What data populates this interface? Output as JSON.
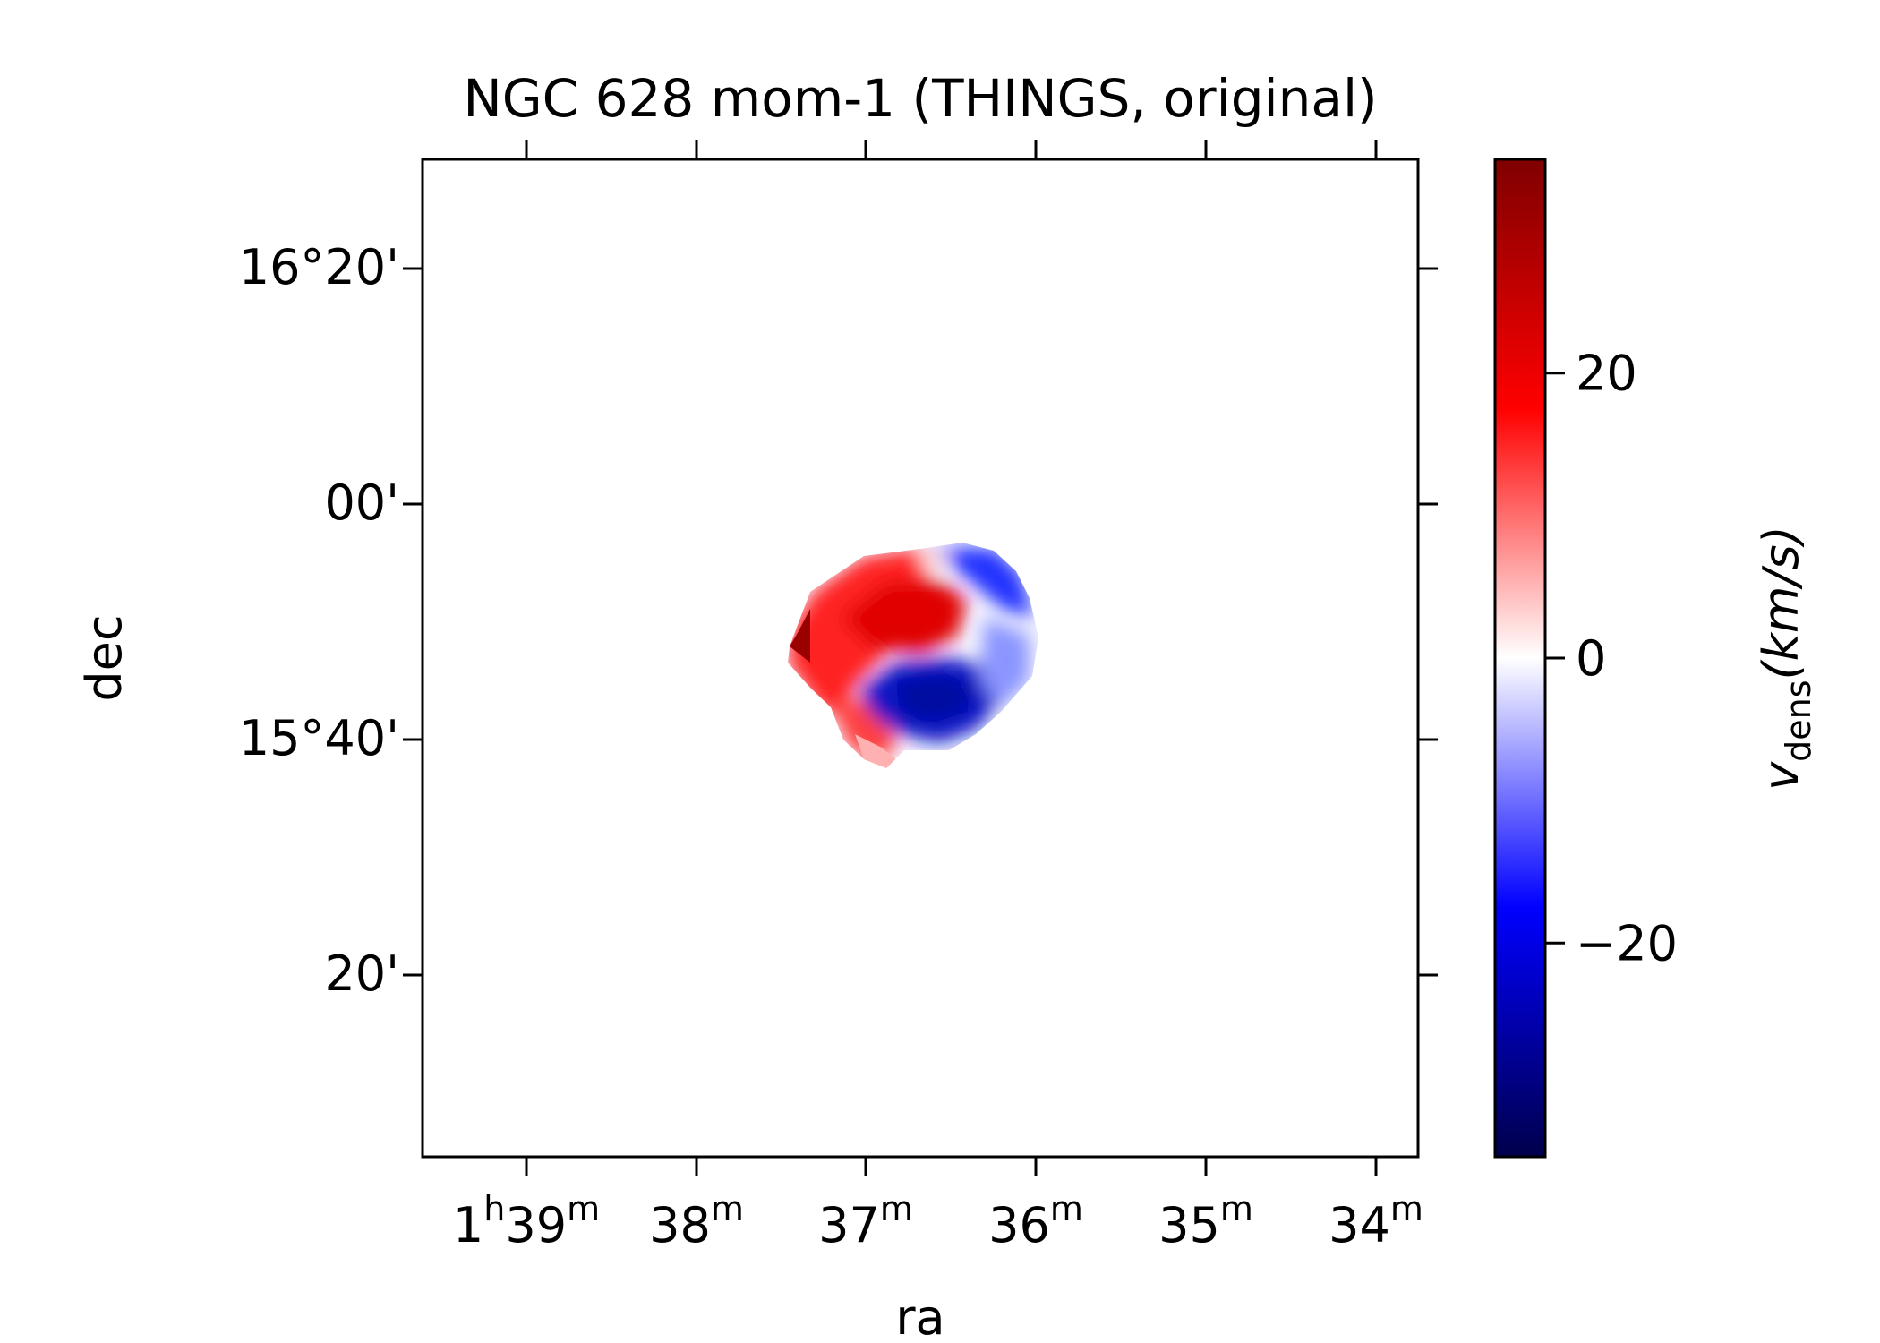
{
  "chart_data": {
    "type": "heatmap",
    "title": "NGC 628 mom-1 (THINGS, original)",
    "xlabel": "ra",
    "ylabel": "dec",
    "x_ticks": [
      {
        "main": "1",
        "sup1": "h",
        "mid": "39",
        "sup2": "m"
      },
      {
        "main": "38",
        "sup": "m"
      },
      {
        "main": "37",
        "sup": "m"
      },
      {
        "main": "36",
        "sup": "m"
      },
      {
        "main": "35",
        "sup": "m"
      },
      {
        "main": "34",
        "sup": "m"
      }
    ],
    "y_ticks": [
      "16°20'",
      "00'",
      "15°40'",
      "20'"
    ],
    "colorbar": {
      "label_main": "v",
      "label_sub": "dens",
      "label_unit": "(km/s)",
      "range": [
        -35,
        35
      ],
      "ticks": [
        {
          "value": 20,
          "label": "20"
        },
        {
          "value": 0,
          "label": "0"
        },
        {
          "value": -20,
          "label": "−20"
        }
      ],
      "cmap": "seismic"
    }
  }
}
